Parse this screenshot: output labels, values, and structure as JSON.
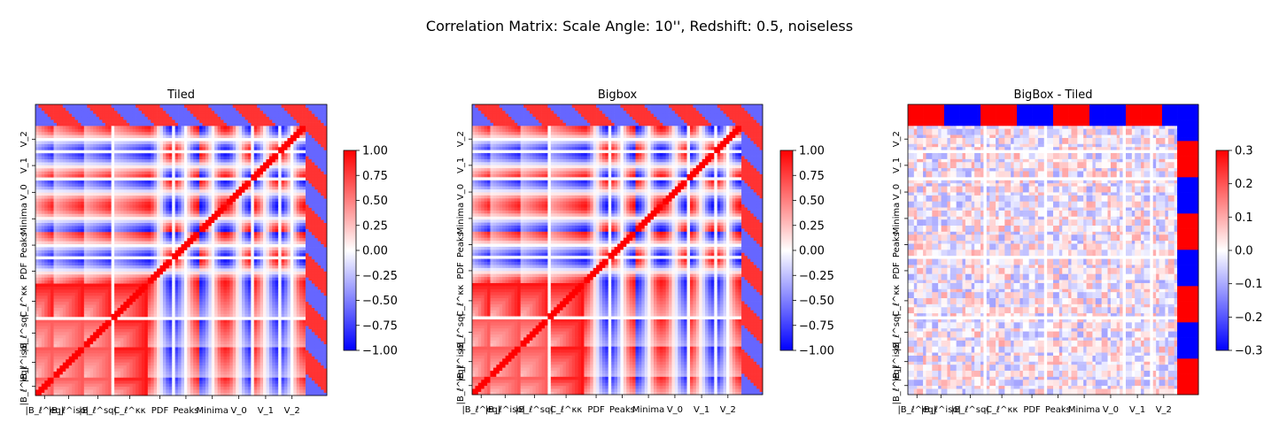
{
  "chart_data": {
    "title": "Correlation Matrix: Scale Angle: 10'', Redshift: 0.5, noiseless",
    "blocks": [
      "|B_ℓ^eq|",
      "|B_ℓ^iso|",
      "|B_ℓ^sq|",
      "C_ℓ^κκ",
      "PDF",
      "Peaks",
      "Minima",
      "V_0",
      "V_1",
      "V_2"
    ],
    "colormap": "bwr",
    "panels": [
      {
        "type": "heatmap",
        "title": "Tiled",
        "x_tick_labels": [
          "|B_ℓ^eq|",
          "|B_ℓ^iso|",
          "|B_ℓ^sq|",
          "C_ℓ^κκ",
          "PDF",
          "Peaks",
          "Minima",
          "V_0",
          "V_1",
          "V_2"
        ],
        "y_tick_labels": [
          "|B_ℓ^eq|",
          "|B_ℓ^iso|",
          "|B_ℓ^sq|",
          "C_ℓ^κκ",
          "PDF",
          "Peaks",
          "Minima",
          "V_0",
          "V_1",
          "V_2"
        ],
        "colorbar": {
          "range": [
            -1.0,
            1.0
          ],
          "ticks": [
            "1.00",
            "0.75",
            "0.50",
            "0.25",
            "0.00",
            "−0.25",
            "−0.50",
            "−0.75",
            "−1.00"
          ]
        }
      },
      {
        "type": "heatmap",
        "title": "Bigbox",
        "x_tick_labels": [
          "|B_ℓ^eq|",
          "|B_ℓ^iso|",
          "|B_ℓ^sq|",
          "C_ℓ^κκ",
          "PDF",
          "Peaks",
          "Minima",
          "V_0",
          "V_1",
          "V_2"
        ],
        "y_tick_labels": [
          "|B_ℓ^eq|",
          "|B_ℓ^iso|",
          "|B_ℓ^sq|",
          "C_ℓ^κκ",
          "PDF",
          "Peaks",
          "Minima",
          "V_0",
          "V_1",
          "V_2"
        ],
        "colorbar": {
          "range": [
            -1.0,
            1.0
          ],
          "ticks": [
            "1.00",
            "0.75",
            "0.50",
            "0.25",
            "0.00",
            "−0.25",
            "−0.50",
            "−0.75",
            "−1.00"
          ]
        }
      },
      {
        "type": "heatmap",
        "title": "BigBox - Tiled",
        "x_tick_labels": [
          "|B_ℓ^eq|",
          "|B_ℓ^iso|",
          "|B_ℓ^sq|",
          "C_ℓ^κκ",
          "PDF",
          "Peaks",
          "Minima",
          "V_0",
          "V_1",
          "V_2"
        ],
        "y_tick_labels": [
          "|B_ℓ^eq|",
          "|B_ℓ^iso|",
          "|B_ℓ^sq|",
          "C_ℓ^κκ",
          "PDF",
          "Peaks",
          "Minima",
          "V_0",
          "V_1",
          "V_2"
        ],
        "colorbar": {
          "range": [
            -0.3,
            0.3
          ],
          "ticks": [
            "0.3",
            "0.2",
            "0.1",
            "0.0",
            "−0.1",
            "−0.2",
            "−0.3"
          ]
        }
      }
    ]
  }
}
